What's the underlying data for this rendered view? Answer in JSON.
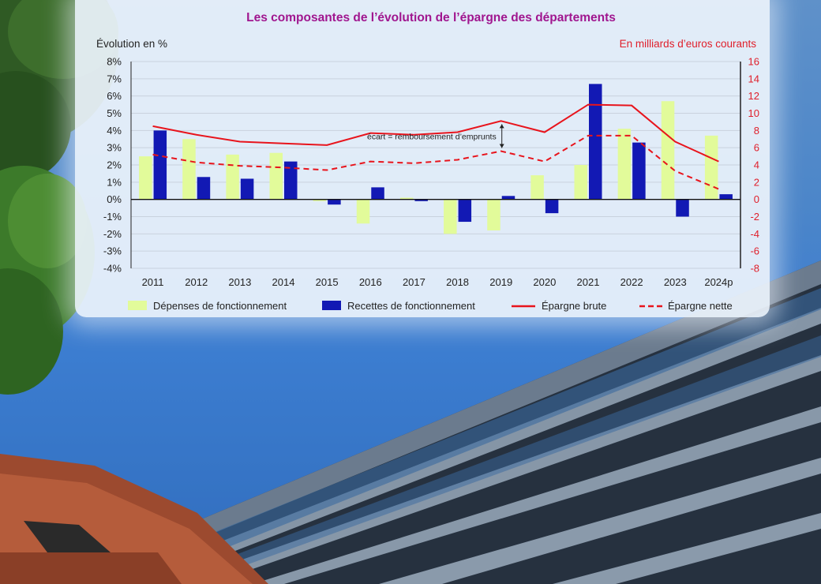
{
  "chart_data": {
    "type": "bar+line",
    "title": "Les composantes de l’évolution de l’épargne des départements",
    "ylabel_left": "Évolution en %",
    "ylabel_right": "En milliards d’euros courants",
    "categories": [
      "2011",
      "2012",
      "2013",
      "2014",
      "2015",
      "2016",
      "2017",
      "2018",
      "2019",
      "2020",
      "2021",
      "2022",
      "2023",
      "2024p"
    ],
    "ylim_left": [
      -4,
      8
    ],
    "yticks_left": [
      "-4%",
      "-3%",
      "-2%",
      "-1%",
      "0%",
      "1%",
      "2%",
      "3%",
      "4%",
      "5%",
      "6%",
      "7%",
      "8%"
    ],
    "ylim_right": [
      -8,
      16
    ],
    "yticks_right": [
      "-8",
      "-6",
      "-4",
      "-2",
      "0",
      "2",
      "4",
      "6",
      "8",
      "10",
      "12",
      "14",
      "16"
    ],
    "bar_series": [
      {
        "name": "Dépenses de fonctionnement",
        "color": "#e2fb9a",
        "values": [
          2.5,
          3.5,
          2.6,
          2.7,
          -0.1,
          -1.4,
          0.1,
          -2.0,
          -1.8,
          1.4,
          2.0,
          4.1,
          5.7,
          3.7
        ]
      },
      {
        "name": "Recettes de fonctionnement",
        "color": "#1219b4",
        "values": [
          4.0,
          1.3,
          1.2,
          2.2,
          -0.3,
          0.7,
          -0.1,
          -1.3,
          0.2,
          -0.8,
          6.7,
          3.3,
          -1.0,
          0.3
        ]
      }
    ],
    "line_series": [
      {
        "name": "Épargne brute",
        "color": "#e8141c",
        "dash": false,
        "values": [
          8.5,
          7.5,
          6.7,
          6.5,
          6.3,
          7.7,
          7.5,
          7.8,
          9.1,
          7.8,
          11.0,
          10.9,
          6.7,
          4.4
        ]
      },
      {
        "name": "Épargne nette",
        "color": "#e8141c",
        "dash": true,
        "values": [
          5.2,
          4.3,
          3.9,
          3.7,
          3.4,
          4.4,
          4.2,
          4.6,
          5.6,
          4.4,
          7.4,
          7.4,
          3.3,
          1.2
        ]
      }
    ],
    "annotation": {
      "text": "écart = remboursement d’emprunts",
      "category": "2019"
    },
    "legend_position": "bottom",
    "grid": true
  }
}
